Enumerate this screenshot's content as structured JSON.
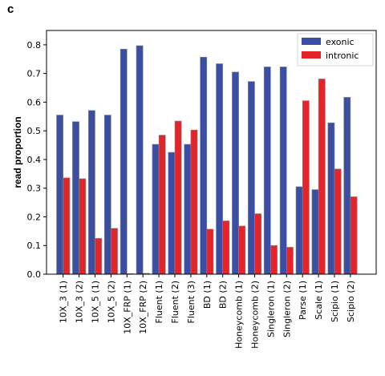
{
  "panel_label": "c",
  "chart_data": {
    "type": "bar",
    "ylabel": "read proportion",
    "xlabel": "",
    "ylim": [
      0,
      0.85
    ],
    "yticks": [
      "0.0",
      "0.1",
      "0.2",
      "0.3",
      "0.4",
      "0.5",
      "0.6",
      "0.7",
      "0.8"
    ],
    "legend_position": "top-right",
    "categories": [
      "10X_3 (1)",
      "10X_3 (2)",
      "10X_5 (1)",
      "10X_5 (2)",
      "10X_FRP (1)",
      "10X_FRP (2)",
      "Fluent (1)",
      "Fluent (2)",
      "Fluent (3)",
      "BD (1)",
      "BD (2)",
      "Honeycomb (1)",
      "Honeycomb (2)",
      "Singleron (1)",
      "Singleron (2)",
      "Parse (1)",
      "Scale (1)",
      "Scipio (1)",
      "Scipio (2)"
    ],
    "series": [
      {
        "name": "exonic",
        "color": "#3a4fa3",
        "values": [
          0.555,
          0.532,
          0.571,
          0.555,
          0.785,
          0.797,
          0.453,
          0.425,
          0.453,
          0.757,
          0.734,
          0.705,
          0.672,
          0.723,
          0.723,
          0.305,
          0.295,
          0.528,
          0.617
        ]
      },
      {
        "name": "intronic",
        "color": "#e5242a",
        "values": [
          0.336,
          0.333,
          0.125,
          0.16,
          0.002,
          0.003,
          0.485,
          0.534,
          0.503,
          0.157,
          0.186,
          0.168,
          0.211,
          0.1,
          0.094,
          0.605,
          0.681,
          0.367,
          0.27
        ]
      }
    ]
  }
}
